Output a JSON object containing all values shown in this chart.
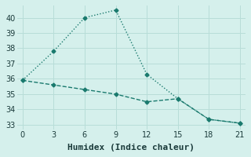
{
  "line1_x": [
    0,
    3,
    6,
    9,
    12,
    15,
    18,
    21
  ],
  "line1_y": [
    35.9,
    37.8,
    40.0,
    40.5,
    36.3,
    34.7,
    33.35,
    33.1
  ],
  "line2_x": [
    0,
    3,
    6,
    9,
    12,
    15,
    18,
    21
  ],
  "line2_y": [
    35.9,
    35.6,
    35.3,
    35.0,
    34.5,
    34.7,
    33.35,
    33.1
  ],
  "color": "#1a7a6e",
  "bg_color": "#d5f0ec",
  "grid_color": "#b8ddd8",
  "xlabel": "Humidex (Indice chaleur)",
  "xlim": [
    -0.5,
    21.5
  ],
  "ylim": [
    32.7,
    40.8
  ],
  "xticks": [
    0,
    3,
    6,
    9,
    12,
    15,
    18,
    21
  ],
  "yticks": [
    33,
    34,
    35,
    36,
    37,
    38,
    39,
    40
  ],
  "marker": "D",
  "markersize": 2.5,
  "linewidth": 1.0,
  "xlabel_fontsize": 8,
  "tick_fontsize": 7
}
